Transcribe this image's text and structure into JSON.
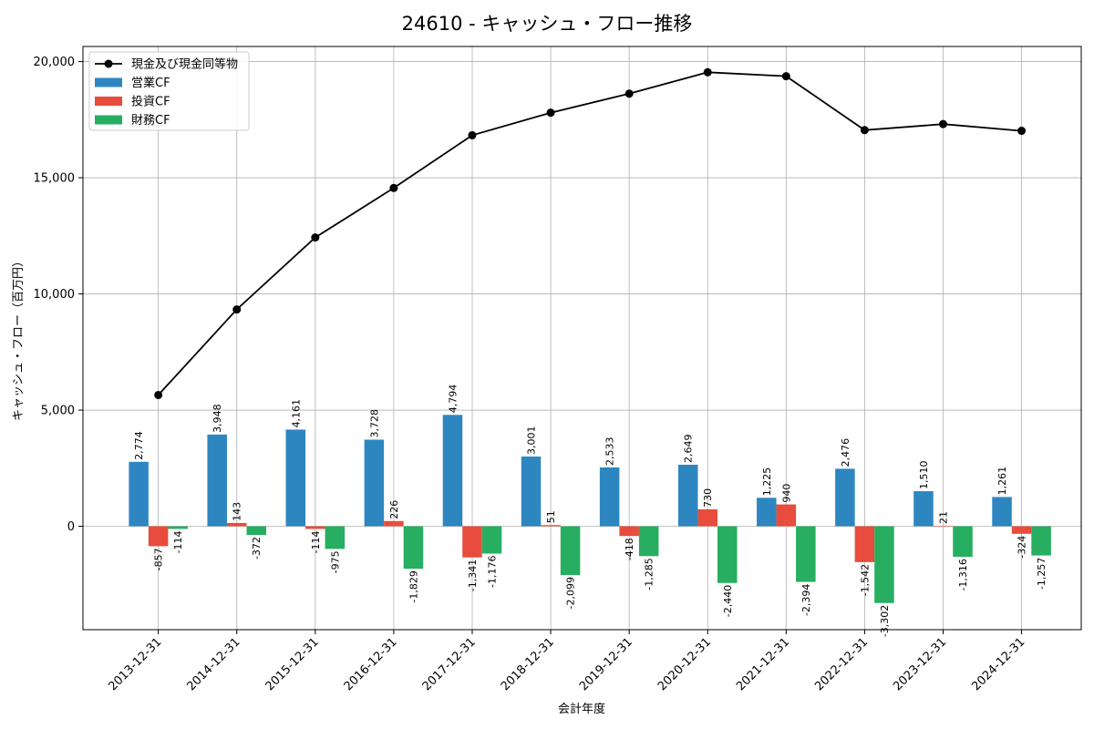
{
  "chart_data": {
    "type": "bar",
    "title": "24610 - キャッシュ・フロー推移",
    "xlabel": "会計年度",
    "ylabel": "キャッシュ・フロー（百万円）",
    "categories": [
      "2013-12-31",
      "2014-12-31",
      "2015-12-31",
      "2016-12-31",
      "2017-12-31",
      "2018-12-31",
      "2019-12-31",
      "2020-12-31",
      "2021-12-31",
      "2022-12-31",
      "2023-12-31",
      "2024-12-31"
    ],
    "series": [
      {
        "name": "営業CF",
        "type": "bar",
        "color": "#2e86c1",
        "values": [
          2774,
          3948,
          4161,
          3728,
          4794,
          3001,
          2533,
          2649,
          1225,
          2476,
          1510,
          1261
        ],
        "labels": [
          "2,774",
          "3,948",
          "4,161",
          "3,728",
          "4,794",
          "3,001",
          "2,533",
          "2,649",
          "1,225",
          "2,476",
          "1,510",
          "1,261"
        ]
      },
      {
        "name": "投資CF",
        "type": "bar",
        "color": "#e74c3c",
        "values": [
          -857,
          143,
          -114,
          226,
          -1341,
          51,
          -418,
          730,
          940,
          -1542,
          21,
          -324
        ],
        "labels": [
          "-857",
          "143",
          "-114",
          "226",
          "-1,341",
          "51",
          "-418",
          "730",
          "940",
          "-1,542",
          "21",
          "-324"
        ]
      },
      {
        "name": "財務CF",
        "type": "bar",
        "color": "#27ae60",
        "values": [
          -114,
          -372,
          -975,
          -1829,
          -1176,
          -2099,
          -1285,
          -2440,
          -2394,
          -3302,
          -1316,
          -1257
        ],
        "labels": [
          "-114",
          "-372",
          "-975",
          "-1,829",
          "-1,176",
          "-2,099",
          "-1,285",
          "-2,440",
          "-2,394",
          "-3,302",
          "-1,316",
          "-1,257"
        ]
      },
      {
        "name": "現金及び現金同等物",
        "type": "line",
        "color": "#000000",
        "values": [
          5650,
          9330,
          12430,
          14560,
          16830,
          17800,
          18620,
          19540,
          19370,
          17050,
          17310,
          17020
        ]
      }
    ],
    "ylim": [
      -4450,
      20650
    ],
    "yticks": [
      0,
      5000,
      10000,
      15000,
      20000
    ],
    "ytick_labels": [
      "0",
      "5,000",
      "10,000",
      "15,000",
      "20,000"
    ],
    "grid": true,
    "legend_position": "top-left"
  }
}
